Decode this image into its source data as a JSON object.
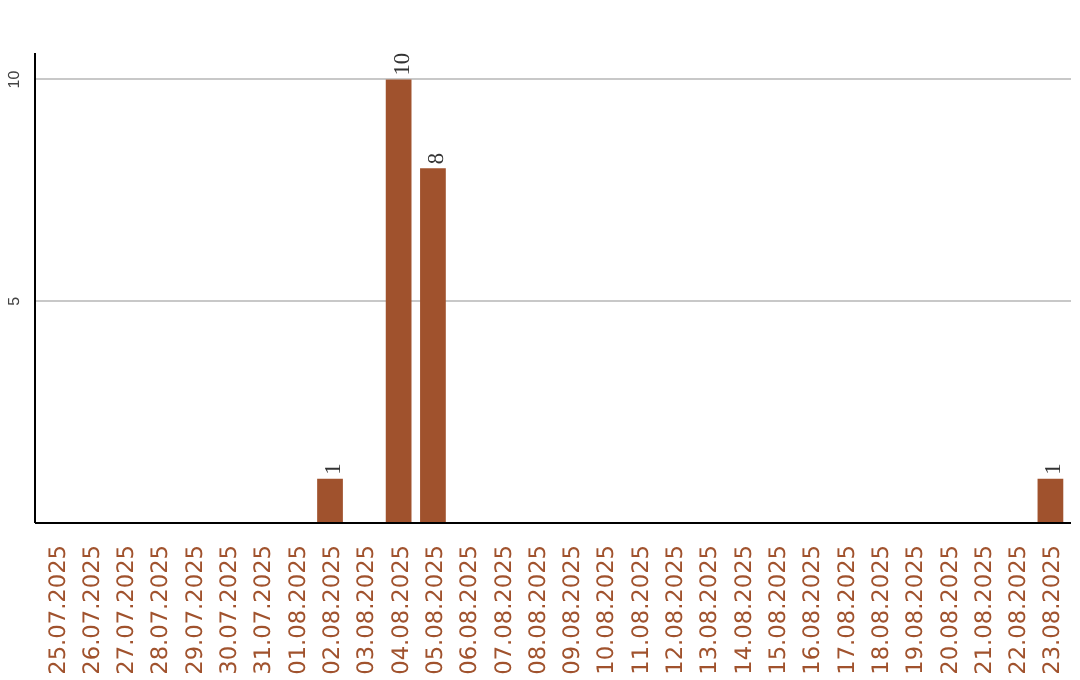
{
  "chart_data": {
    "type": "bar",
    "categories": [
      "25.07.2025",
      "26.07.2025",
      "27.07.2025",
      "28.07.2025",
      "29.07.2025",
      "30.07.2025",
      "31.07.2025",
      "01.08.2025",
      "02.08.2025",
      "03.08.2025",
      "04.08.2025",
      "05.08.2025",
      "06.08.2025",
      "07.08.2025",
      "08.08.2025",
      "09.08.2025",
      "10.08.2025",
      "11.08.2025",
      "12.08.2025",
      "13.08.2025",
      "14.08.2025",
      "15.08.2025",
      "16.08.2025",
      "17.08.2025",
      "18.08.2025",
      "19.08.2025",
      "20.08.2025",
      "21.08.2025",
      "22.08.2025",
      "23.08.2025"
    ],
    "values": [
      0,
      0,
      0,
      0,
      0,
      0,
      0,
      0,
      1,
      0,
      10,
      8,
      0,
      0,
      0,
      0,
      0,
      0,
      0,
      0,
      0,
      0,
      0,
      0,
      0,
      0,
      0,
      0,
      0,
      1
    ],
    "value_labels": [
      null,
      null,
      null,
      null,
      null,
      null,
      null,
      null,
      "1",
      null,
      "10",
      "8",
      null,
      null,
      null,
      null,
      null,
      null,
      null,
      null,
      null,
      null,
      null,
      null,
      null,
      null,
      null,
      null,
      null,
      "1"
    ],
    "color": "#a0522d",
    "ylim": [
      0,
      10.6
    ],
    "yticks": [
      5,
      10
    ],
    "grid": "y"
  }
}
